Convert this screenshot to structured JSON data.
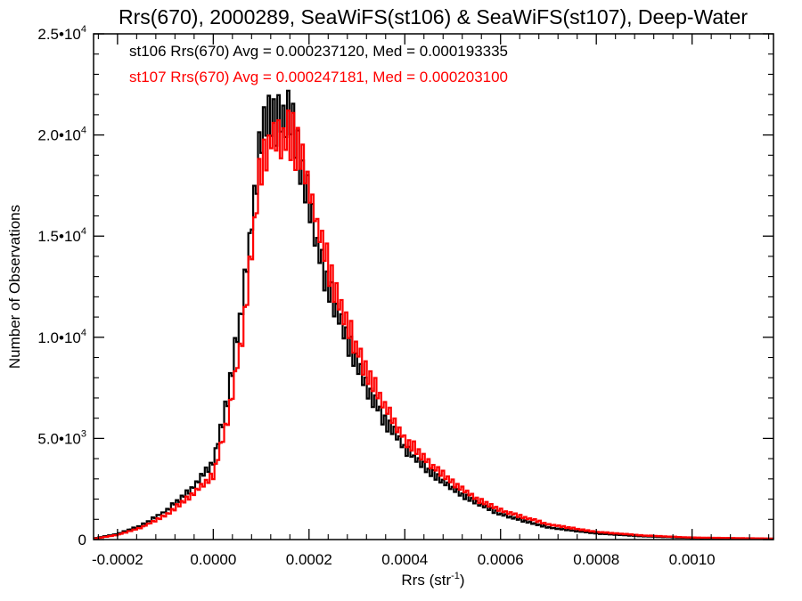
{
  "chart_data": {
    "type": "histogram",
    "title": "Rrs(670), 2000289, SeaWiFS(st106) & SeaWiFS(st107), Deep-Water",
    "xlabel": "Rrs (str",
    "xlabel_sup": "-1",
    "xlabel_end": ")",
    "ylabel": "Number of Observations",
    "xlim": [
      -0.00025,
      0.00117
    ],
    "ylim": [
      0,
      25000
    ],
    "grid": false,
    "x_ticks": [
      {
        "value": -0.0002,
        "label": "-0.0002"
      },
      {
        "value": 0.0,
        "label": "0.0000"
      },
      {
        "value": 0.0002,
        "label": "0.0002"
      },
      {
        "value": 0.0004,
        "label": "0.0004"
      },
      {
        "value": 0.0006,
        "label": "0.0006"
      },
      {
        "value": 0.0008,
        "label": "0.0008"
      },
      {
        "value": 0.001,
        "label": "0.0010"
      }
    ],
    "y_ticks": [
      {
        "value": 0,
        "mant": "0",
        "exp": ""
      },
      {
        "value": 5000,
        "mant": "5.0•10",
        "exp": "3"
      },
      {
        "value": 10000,
        "mant": "1.0•10",
        "exp": "4"
      },
      {
        "value": 15000,
        "mant": "1.5•10",
        "exp": "4"
      },
      {
        "value": 20000,
        "mant": "2.0•10",
        "exp": "4"
      },
      {
        "value": 25000,
        "mant": "2.5•10",
        "exp": "4"
      }
    ],
    "annotations": [
      {
        "text": "st106 Rrs(670) Avg = 0.000237120, Med = 0.000193335",
        "color": "#000000"
      },
      {
        "text": "st107 Rrs(670) Avg = 0.000247181, Med = 0.000203100",
        "color": "#ff0000"
      }
    ],
    "series": [
      {
        "color": "#000000",
        "x": [
          -0.00025,
          -0.0002,
          -0.00015,
          -0.0001,
          -5e-05,
          0.0,
          3e-05,
          6e-05,
          8e-05,
          0.0001,
          0.00012,
          0.00014,
          0.00016,
          0.00018,
          0.0002,
          0.00022,
          0.00025,
          0.0003,
          0.00035,
          0.0004,
          0.00045,
          0.0005,
          0.00055,
          0.0006,
          0.0007,
          0.0008,
          0.0009,
          0.001,
          0.00117
        ],
        "y": [
          50,
          280,
          700,
          1400,
          2400,
          3800,
          7000,
          11500,
          15500,
          19800,
          21000,
          20600,
          21000,
          19000,
          16500,
          14200,
          11800,
          8600,
          6200,
          4500,
          3400,
          2500,
          1800,
          1250,
          600,
          300,
          160,
          80,
          40
        ]
      },
      {
        "color": "#ff0000",
        "x": [
          -0.00025,
          -0.0002,
          -0.00015,
          -0.0001,
          -5e-05,
          0.0,
          3e-05,
          6e-05,
          8e-05,
          0.0001,
          0.00012,
          0.00014,
          0.00016,
          0.00018,
          0.0002,
          0.00022,
          0.00025,
          0.0003,
          0.00035,
          0.0004,
          0.00045,
          0.0005,
          0.00055,
          0.0006,
          0.0007,
          0.0008,
          0.0009,
          0.001,
          0.00117
        ],
        "y": [
          40,
          230,
          600,
          1200,
          2100,
          3200,
          5800,
          10000,
          14200,
          18500,
          19800,
          19800,
          20000,
          19200,
          17400,
          15200,
          12800,
          9400,
          6900,
          5000,
          3800,
          2800,
          2000,
          1450,
          750,
          380,
          200,
          100,
          50
        ]
      }
    ]
  }
}
